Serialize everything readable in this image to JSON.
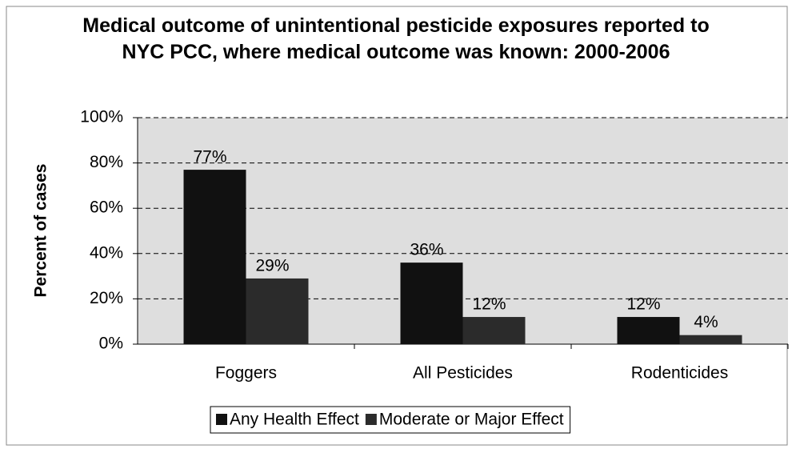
{
  "chart_data": {
    "type": "bar",
    "title": "Medical outcome of unintentional pesticide exposures reported to NYC PCC, where medical outcome was known: 2000-2006",
    "y_label": "Percent of cases",
    "categories": [
      "Foggers",
      "All Pesticides",
      "Rodenticides"
    ],
    "series": [
      {
        "name": "Any Health Effect",
        "color": "#111111",
        "values": [
          77,
          36,
          12
        ],
        "value_labels": [
          "77%",
          "36%",
          "12%"
        ]
      },
      {
        "name": "Moderate or Major Effect",
        "color": "#2b2b2b",
        "values": [
          29,
          12,
          4
        ],
        "value_labels": [
          "29%",
          "12%",
          "4%"
        ]
      }
    ],
    "ylim": [
      0,
      100
    ],
    "yticks": [
      {
        "value": 0,
        "label": "0%"
      },
      {
        "value": 20,
        "label": "20%"
      },
      {
        "value": 40,
        "label": "40%"
      },
      {
        "value": 60,
        "label": "60%"
      },
      {
        "value": 80,
        "label": "80%"
      },
      {
        "value": 100,
        "label": "100%"
      }
    ],
    "grid": true,
    "legend": "bottom"
  }
}
